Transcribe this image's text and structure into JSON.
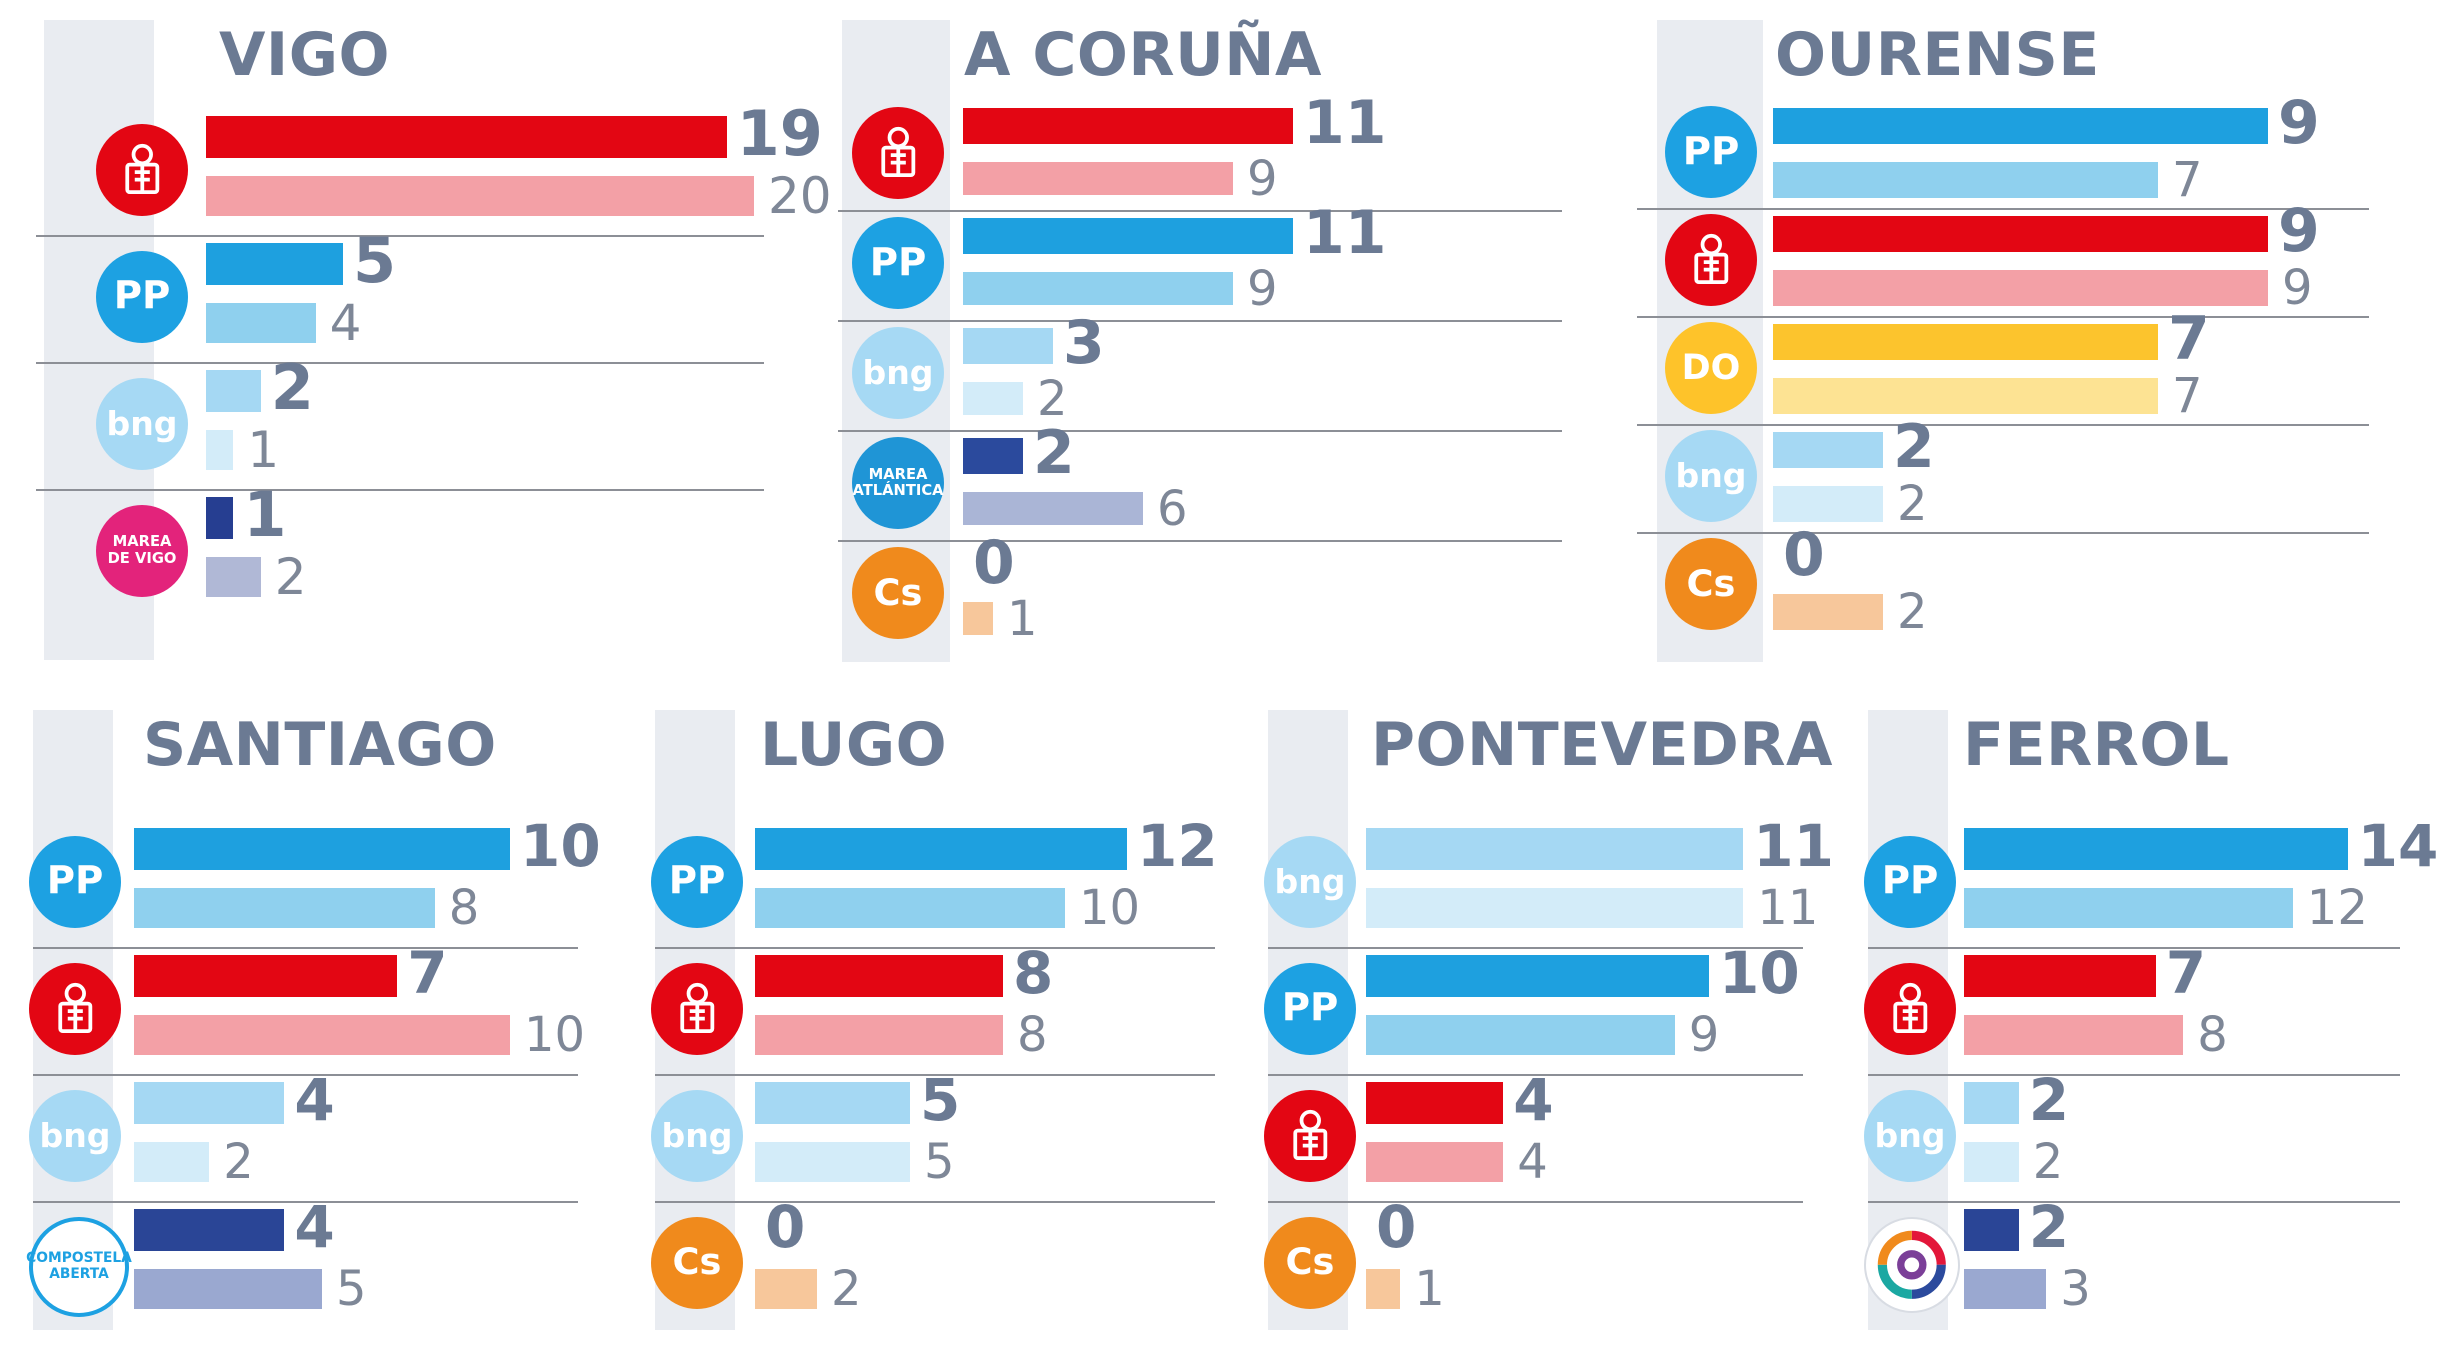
{
  "colors": {
    "title": "#6b7a93",
    "strip": "#e9ecf1",
    "separator": "#8c8f96"
  },
  "parties": {
    "psoe": {
      "icon": "psoe-rose-icon",
      "circle": "#e30613",
      "cur": "#e30613",
      "prev": "#f3a0a6",
      "prev_alt": "#f18a92"
    },
    "pp": {
      "icon": "pp-gull-icon",
      "circle": "#1da1e2",
      "cur": "#1ea0df",
      "prev": "#8fd0ee",
      "prev_light": "#a8daf2"
    },
    "bng": {
      "icon": "bng-star-icon",
      "circle": "#a6d9f4",
      "cur": "#a5d8f3",
      "prev": "#d3ecf9"
    },
    "marea_vigo": {
      "icon": "marea-de-vigo-icon",
      "circle": "#e3237b",
      "cur": "#263e91",
      "prev": "#b0b8d6"
    },
    "marea_atlantica": {
      "icon": "marea-atlantica-icon",
      "circle": "#1f95d6",
      "cur": "#2b4a9d",
      "prev": "#aab5d6"
    },
    "cs": {
      "icon": "cs-icon",
      "circle": "#f08a1c",
      "cur": "#f08a1c",
      "prev": "#f7c79b"
    },
    "do": {
      "icon": "do-icon",
      "circle": "#fec32a",
      "cur": "#fcc42d",
      "prev": "#fde393"
    },
    "compostela_aberta": {
      "icon": "compostela-aberta-icon",
      "circle": "#ffffff",
      "cur": "#2a4596",
      "prev": "#9aa8d0"
    },
    "ferrol_en_comun": {
      "icon": "ferrol-en-comun-icon",
      "circle": "#ffffff",
      "cur": "#2a4596",
      "prev": "#9aa8d0"
    }
  },
  "logo_text": {
    "pp": "PP",
    "bng": "bng",
    "cs": "Cs",
    "do": "DO",
    "marea_vigo": "MAREA DE VIGO",
    "marea_atlantica": "MAREA ATLÁNTICA",
    "compostela_aberta": "COMPOSTELA ABERTA"
  },
  "chart_data": [
    {
      "type": "bar",
      "title": "VIGO",
      "rows": [
        {
          "party": "psoe",
          "current": 19,
          "previous": 20
        },
        {
          "party": "pp",
          "current": 5,
          "previous": 4
        },
        {
          "party": "bng",
          "current": 2,
          "previous": 1
        },
        {
          "party": "marea_vigo",
          "current": 1,
          "previous": 2
        }
      ]
    },
    {
      "type": "bar",
      "title": "A CORUÑA",
      "rows": [
        {
          "party": "psoe",
          "current": 11,
          "previous": 9
        },
        {
          "party": "pp",
          "current": 11,
          "previous": 9
        },
        {
          "party": "bng",
          "current": 3,
          "previous": 2
        },
        {
          "party": "marea_atlantica",
          "current": 2,
          "previous": 6
        },
        {
          "party": "cs",
          "current": 0,
          "previous": 1
        }
      ]
    },
    {
      "type": "bar",
      "title": "OURENSE",
      "rows": [
        {
          "party": "pp",
          "current": 9,
          "previous": 7
        },
        {
          "party": "psoe",
          "current": 9,
          "previous": 9
        },
        {
          "party": "do",
          "current": 7,
          "previous": 7
        },
        {
          "party": "bng",
          "current": 2,
          "previous": 2
        },
        {
          "party": "cs",
          "current": 0,
          "previous": 2
        }
      ]
    },
    {
      "type": "bar",
      "title": "SANTIAGO",
      "rows": [
        {
          "party": "pp",
          "current": 10,
          "previous": 8
        },
        {
          "party": "psoe",
          "current": 7,
          "previous": 10
        },
        {
          "party": "bng",
          "current": 4,
          "previous": 2
        },
        {
          "party": "compostela_aberta",
          "current": 4,
          "previous": 5
        }
      ]
    },
    {
      "type": "bar",
      "title": "LUGO",
      "rows": [
        {
          "party": "pp",
          "current": 12,
          "previous": 10
        },
        {
          "party": "psoe",
          "current": 8,
          "previous": 8
        },
        {
          "party": "bng",
          "current": 5,
          "previous": 5
        },
        {
          "party": "cs",
          "current": 0,
          "previous": 2
        }
      ]
    },
    {
      "type": "bar",
      "title": "PONTEVEDRA",
      "rows": [
        {
          "party": "bng",
          "current": 11,
          "previous": 11
        },
        {
          "party": "pp",
          "current": 10,
          "previous": 9
        },
        {
          "party": "psoe",
          "current": 4,
          "previous": 4
        },
        {
          "party": "cs",
          "current": 0,
          "previous": 1
        }
      ]
    },
    {
      "type": "bar",
      "title": "FERROL",
      "rows": [
        {
          "party": "pp",
          "current": 14,
          "previous": 12
        },
        {
          "party": "psoe",
          "current": 7,
          "previous": 8
        },
        {
          "party": "bng",
          "current": 2,
          "previous": 2
        },
        {
          "party": "ferrol_en_comun",
          "current": 2,
          "previous": 3
        }
      ]
    }
  ]
}
